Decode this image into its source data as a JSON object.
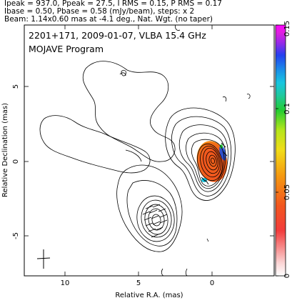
{
  "header": {
    "line1": "Ipeak = 937.0, Ppeak = 27.5, I RMS = 0.15, P RMS = 0.17",
    "line2": "Ibase = 0.50, Pbase = 0.58 (mJy/beam), steps: x 2",
    "line3": "Beam: 1.14x0.60 mas at -4.1 deg., Nat. Wgt. (no taper)"
  },
  "chart_data": {
    "type": "contour",
    "title": "2201+171, 2009-01-07, VLBA 15.4 GHz",
    "subtitle": "MOJAVE Program",
    "xlabel": "Relative R.A. (mas)",
    "ylabel": "Relative Declination (mas)",
    "xlim": [
      12.8,
      -4.6
    ],
    "ylim": [
      -8.6,
      10.0
    ],
    "x_ticks": [
      10,
      5,
      0
    ],
    "y_ticks": [
      5,
      0,
      -5
    ],
    "x_tick_labels": [
      "10",
      "5",
      "0"
    ],
    "y_tick_labels": [
      "5",
      "0",
      "-5"
    ],
    "colorbar": {
      "range": [
        0,
        0.15
      ],
      "ticks": [
        0,
        0.05,
        0.1,
        0.15
      ],
      "tick_labels": [
        "0",
        "0.05",
        "0.1",
        "0.15"
      ]
    },
    "contour_base_mJy_per_beam": 0.5,
    "contour_step_factor": 2,
    "core_position": [
      0.0,
      0.0
    ],
    "jet_component_position": [
      3.8,
      -3.6
    ],
    "beam": {
      "major_mas": 1.14,
      "minor_mas": 0.6,
      "pa_deg": -4.1
    }
  }
}
